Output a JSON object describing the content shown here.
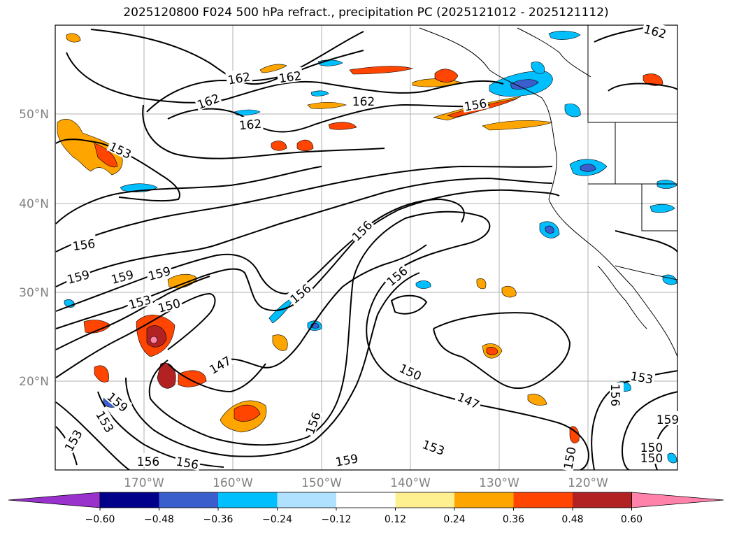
{
  "title": "2025120800 F024 500 hPa refract., precipitation PC (2025121012 - 2025121112)",
  "lat_labels": [
    "50°N",
    "40°N",
    "30°N",
    "20°N"
  ],
  "lon_labels": [
    "170°W",
    "160°W",
    "150°W",
    "140°W",
    "130°W",
    "120°W"
  ],
  "contour_labels": [
    "162",
    "162",
    "162",
    "162",
    "162",
    "162",
    "156",
    "153",
    "156",
    "156",
    "159",
    "159",
    "159",
    "153",
    "150",
    "156",
    "156",
    "147",
    "150",
    "147",
    "153",
    "156",
    "159",
    "153",
    "156",
    "156",
    "159",
    "153",
    "150",
    "153",
    "159",
    "150",
    "156",
    "150"
  ],
  "colorbar": {
    "ticks": [
      "−0.60",
      "−0.48",
      "−0.36",
      "−0.24",
      "−0.12",
      "0.12",
      "0.24",
      "0.36",
      "0.48",
      "0.60"
    ],
    "colors": [
      "#9932cc",
      "#00008b",
      "#3a5fcd",
      "#00bfff",
      "#b0e2ff",
      "#ffffff",
      "#fff08f",
      "#ffa500",
      "#ff4500",
      "#b22222",
      "#ff82ab"
    ]
  }
}
